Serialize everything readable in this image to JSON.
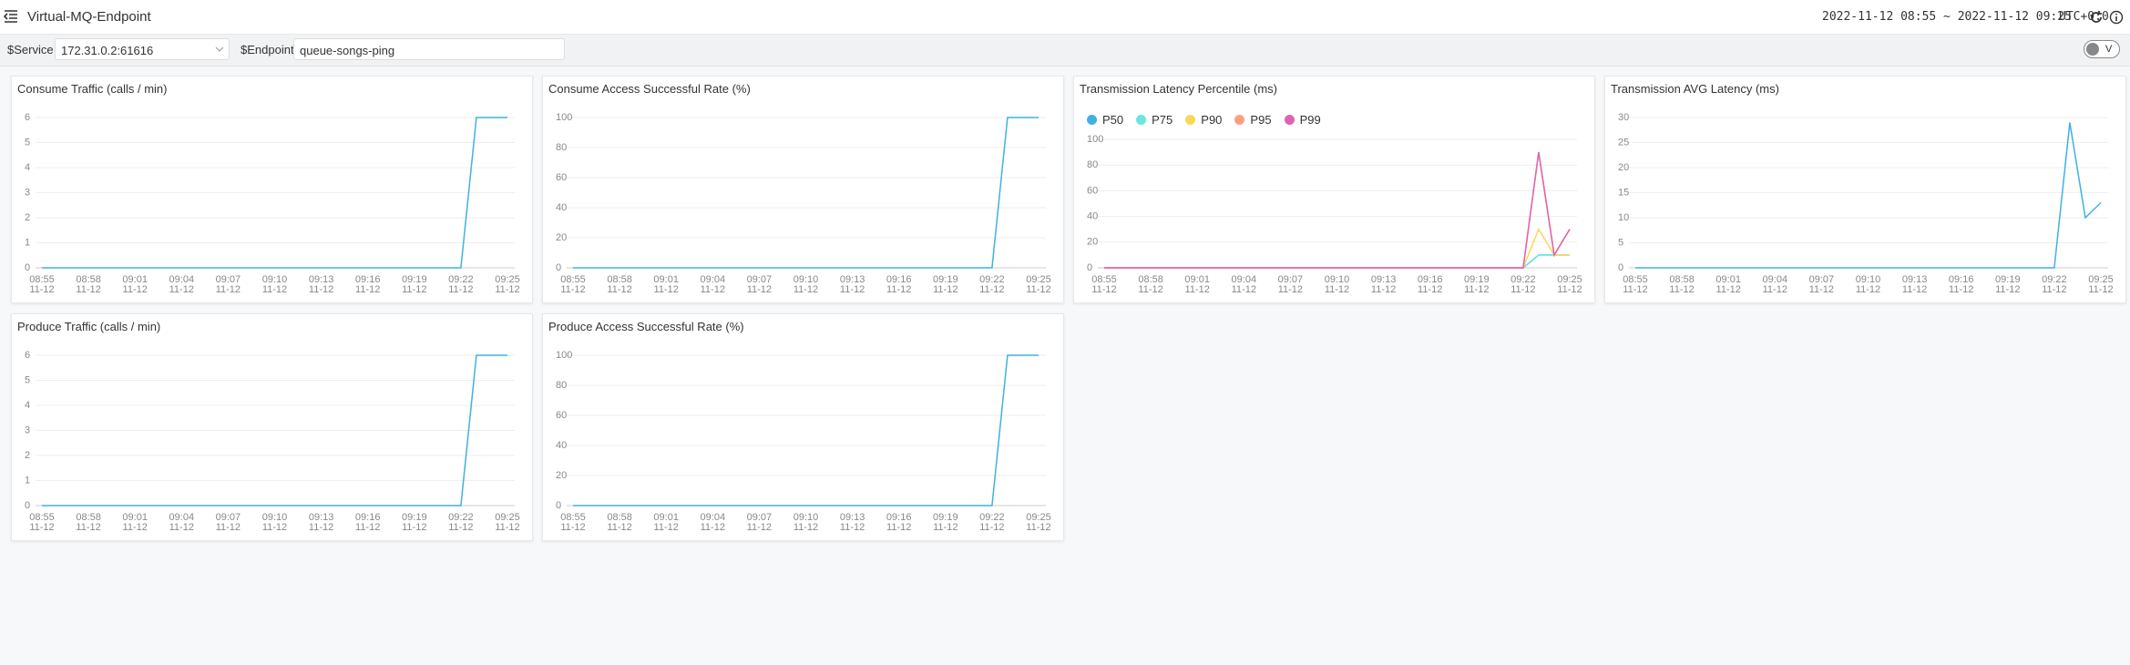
{
  "header": {
    "title": "Virtual-MQ-Endpoint",
    "time_range": "2022-11-12 08:55 ~ 2022-11-12 09:25",
    "timezone": "UTC+0:0"
  },
  "toolbar": {
    "service_label": "$Service",
    "service_value": "172.31.0.2:61616",
    "endpoint_label": "$Endpoint",
    "endpoint_value": "queue-songs-ping",
    "toggle_label": "V"
  },
  "chart_data": [
    {
      "type": "line",
      "title": "Consume Traffic (calls / min)",
      "categories": [
        "08:55\n11-12",
        null,
        null,
        "08:58\n11-12",
        null,
        null,
        "09:01\n11-12",
        null,
        null,
        "09:04\n11-12",
        null,
        null,
        "09:07\n11-12",
        null,
        null,
        "09:10\n11-12",
        null,
        null,
        "09:13\n11-12",
        null,
        null,
        "09:16\n11-12",
        null,
        null,
        "09:19\n11-12",
        null,
        null,
        "09:22\n11-12",
        null,
        null,
        "09:25\n11-12"
      ],
      "series": [
        {
          "name": "Consume Traffic",
          "color": "#3fb1e3",
          "values": [
            0,
            0,
            0,
            0,
            0,
            0,
            0,
            0,
            0,
            0,
            0,
            0,
            0,
            0,
            0,
            0,
            0,
            0,
            0,
            0,
            0,
            0,
            0,
            0,
            0,
            0,
            0,
            0,
            6,
            6,
            6
          ]
        }
      ],
      "ylim": [
        0,
        6
      ],
      "yticks": [
        0,
        1,
        2,
        3,
        4,
        5,
        6
      ],
      "grid": true
    },
    {
      "type": "line",
      "title": "Consume Access Successful Rate (%)",
      "categories": [
        "08:55\n11-12",
        null,
        null,
        "08:58\n11-12",
        null,
        null,
        "09:01\n11-12",
        null,
        null,
        "09:04\n11-12",
        null,
        null,
        "09:07\n11-12",
        null,
        null,
        "09:10\n11-12",
        null,
        null,
        "09:13\n11-12",
        null,
        null,
        "09:16\n11-12",
        null,
        null,
        "09:19\n11-12",
        null,
        null,
        "09:22\n11-12",
        null,
        null,
        "09:25\n11-12"
      ],
      "series": [
        {
          "name": "Consume Access Successful Rate",
          "color": "#3fb1e3",
          "values": [
            0,
            0,
            0,
            0,
            0,
            0,
            0,
            0,
            0,
            0,
            0,
            0,
            0,
            0,
            0,
            0,
            0,
            0,
            0,
            0,
            0,
            0,
            0,
            0,
            0,
            0,
            0,
            0,
            100,
            100,
            100
          ]
        }
      ],
      "ylim": [
        0,
        100
      ],
      "yticks": [
        0,
        20,
        40,
        60,
        80,
        100
      ],
      "grid": true
    },
    {
      "type": "line",
      "title": "Transmission Latency Percentile (ms)",
      "legend": "top-left",
      "categories": [
        "08:55\n11-12",
        null,
        null,
        "08:58\n11-12",
        null,
        null,
        "09:01\n11-12",
        null,
        null,
        "09:04\n11-12",
        null,
        null,
        "09:07\n11-12",
        null,
        null,
        "09:10\n11-12",
        null,
        null,
        "09:13\n11-12",
        null,
        null,
        "09:16\n11-12",
        null,
        null,
        "09:19\n11-12",
        null,
        null,
        "09:22\n11-12",
        null,
        null,
        "09:25\n11-12"
      ],
      "series": [
        {
          "name": "P50",
          "color": "#3fb1e3",
          "values": [
            0,
            0,
            0,
            0,
            0,
            0,
            0,
            0,
            0,
            0,
            0,
            0,
            0,
            0,
            0,
            0,
            0,
            0,
            0,
            0,
            0,
            0,
            0,
            0,
            0,
            0,
            0,
            0,
            10,
            10,
            10
          ]
        },
        {
          "name": "P75",
          "color": "#6be6e1",
          "values": [
            0,
            0,
            0,
            0,
            0,
            0,
            0,
            0,
            0,
            0,
            0,
            0,
            0,
            0,
            0,
            0,
            0,
            0,
            0,
            0,
            0,
            0,
            0,
            0,
            0,
            0,
            0,
            0,
            10,
            10,
            10
          ]
        },
        {
          "name": "P90",
          "color": "#f9d858",
          "values": [
            0,
            0,
            0,
            0,
            0,
            0,
            0,
            0,
            0,
            0,
            0,
            0,
            0,
            0,
            0,
            0,
            0,
            0,
            0,
            0,
            0,
            0,
            0,
            0,
            0,
            0,
            0,
            0,
            30,
            10,
            10
          ]
        },
        {
          "name": "P95",
          "color": "#ff9f7f",
          "values": [
            0,
            0,
            0,
            0,
            0,
            0,
            0,
            0,
            0,
            0,
            0,
            0,
            0,
            0,
            0,
            0,
            0,
            0,
            0,
            0,
            0,
            0,
            0,
            0,
            0,
            0,
            0,
            0,
            90,
            10,
            30
          ]
        },
        {
          "name": "P99",
          "color": "#e062ae",
          "values": [
            0,
            0,
            0,
            0,
            0,
            0,
            0,
            0,
            0,
            0,
            0,
            0,
            0,
            0,
            0,
            0,
            0,
            0,
            0,
            0,
            0,
            0,
            0,
            0,
            0,
            0,
            0,
            0,
            90,
            10,
            30
          ]
        }
      ],
      "ylim": [
        0,
        100
      ],
      "yticks": [
        0,
        20,
        40,
        60,
        80,
        100
      ],
      "grid": true
    },
    {
      "type": "line",
      "title": "Transmission AVG Latency (ms)",
      "categories": [
        "08:55\n11-12",
        null,
        null,
        "08:58\n11-12",
        null,
        null,
        "09:01\n11-12",
        null,
        null,
        "09:04\n11-12",
        null,
        null,
        "09:07\n11-12",
        null,
        null,
        "09:10\n11-12",
        null,
        null,
        "09:13\n11-12",
        null,
        null,
        "09:16\n11-12",
        null,
        null,
        "09:19\n11-12",
        null,
        null,
        "09:22\n11-12",
        null,
        null,
        "09:25\n11-12"
      ],
      "series": [
        {
          "name": "Transmission AVG Latency",
          "color": "#3fb1e3",
          "values": [
            0,
            0,
            0,
            0,
            0,
            0,
            0,
            0,
            0,
            0,
            0,
            0,
            0,
            0,
            0,
            0,
            0,
            0,
            0,
            0,
            0,
            0,
            0,
            0,
            0,
            0,
            0,
            0,
            29,
            10,
            13
          ]
        }
      ],
      "ylim": [
        0,
        30
      ],
      "yticks": [
        0,
        5,
        10,
        15,
        20,
        25,
        30
      ],
      "grid": true
    },
    {
      "type": "line",
      "title": "Produce Traffic (calls / min)",
      "categories": [
        "08:55\n11-12",
        null,
        null,
        "08:58\n11-12",
        null,
        null,
        "09:01\n11-12",
        null,
        null,
        "09:04\n11-12",
        null,
        null,
        "09:07\n11-12",
        null,
        null,
        "09:10\n11-12",
        null,
        null,
        "09:13\n11-12",
        null,
        null,
        "09:16\n11-12",
        null,
        null,
        "09:19\n11-12",
        null,
        null,
        "09:22\n11-12",
        null,
        null,
        "09:25\n11-12"
      ],
      "series": [
        {
          "name": "Produce Traffic",
          "color": "#3fb1e3",
          "values": [
            0,
            0,
            0,
            0,
            0,
            0,
            0,
            0,
            0,
            0,
            0,
            0,
            0,
            0,
            0,
            0,
            0,
            0,
            0,
            0,
            0,
            0,
            0,
            0,
            0,
            0,
            0,
            0,
            6,
            6,
            6
          ]
        }
      ],
      "ylim": [
        0,
        6
      ],
      "yticks": [
        0,
        1,
        2,
        3,
        4,
        5,
        6
      ],
      "grid": true
    },
    {
      "type": "line",
      "title": "Produce Access Successful Rate (%)",
      "categories": [
        "08:55\n11-12",
        null,
        null,
        "08:58\n11-12",
        null,
        null,
        "09:01\n11-12",
        null,
        null,
        "09:04\n11-12",
        null,
        null,
        "09:07\n11-12",
        null,
        null,
        "09:10\n11-12",
        null,
        null,
        "09:13\n11-12",
        null,
        null,
        "09:16\n11-12",
        null,
        null,
        "09:19\n11-12",
        null,
        null,
        "09:22\n11-12",
        null,
        null,
        "09:25\n11-12"
      ],
      "series": [
        {
          "name": "Produce Access Successful Rate",
          "color": "#3fb1e3",
          "values": [
            0,
            0,
            0,
            0,
            0,
            0,
            0,
            0,
            0,
            0,
            0,
            0,
            0,
            0,
            0,
            0,
            0,
            0,
            0,
            0,
            0,
            0,
            0,
            0,
            0,
            0,
            0,
            0,
            100,
            100,
            100
          ]
        }
      ],
      "ylim": [
        0,
        100
      ],
      "yticks": [
        0,
        20,
        40,
        60,
        80,
        100
      ],
      "grid": true
    }
  ]
}
